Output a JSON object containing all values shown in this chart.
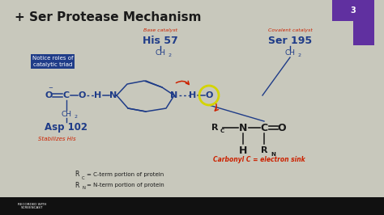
{
  "bg_color": "#c8c8bc",
  "title": "+ Ser Protease Mechanism",
  "title_color": "#1a1a1a",
  "title_fontsize": 11,
  "blue_box_text": "Notice roles of\ncatalytic triad",
  "blue_box_color": "#1f3c88",
  "his57_label": "His 57",
  "his57_sublabel": "Base catalyst",
  "ser195_label": "Ser 195",
  "ser195_sublabel": "Covalent catalyst",
  "asp102_label": "Asp 102",
  "asp102_sublabel": "Stabilizes His",
  "carbonyl_text": "Carbonyl C = electron sink",
  "dark_blue": "#1f3c88",
  "red_color": "#cc2200",
  "black_color": "#1a1a1a",
  "purple_color": "#6030a0",
  "yellow_color": "#d4d400"
}
